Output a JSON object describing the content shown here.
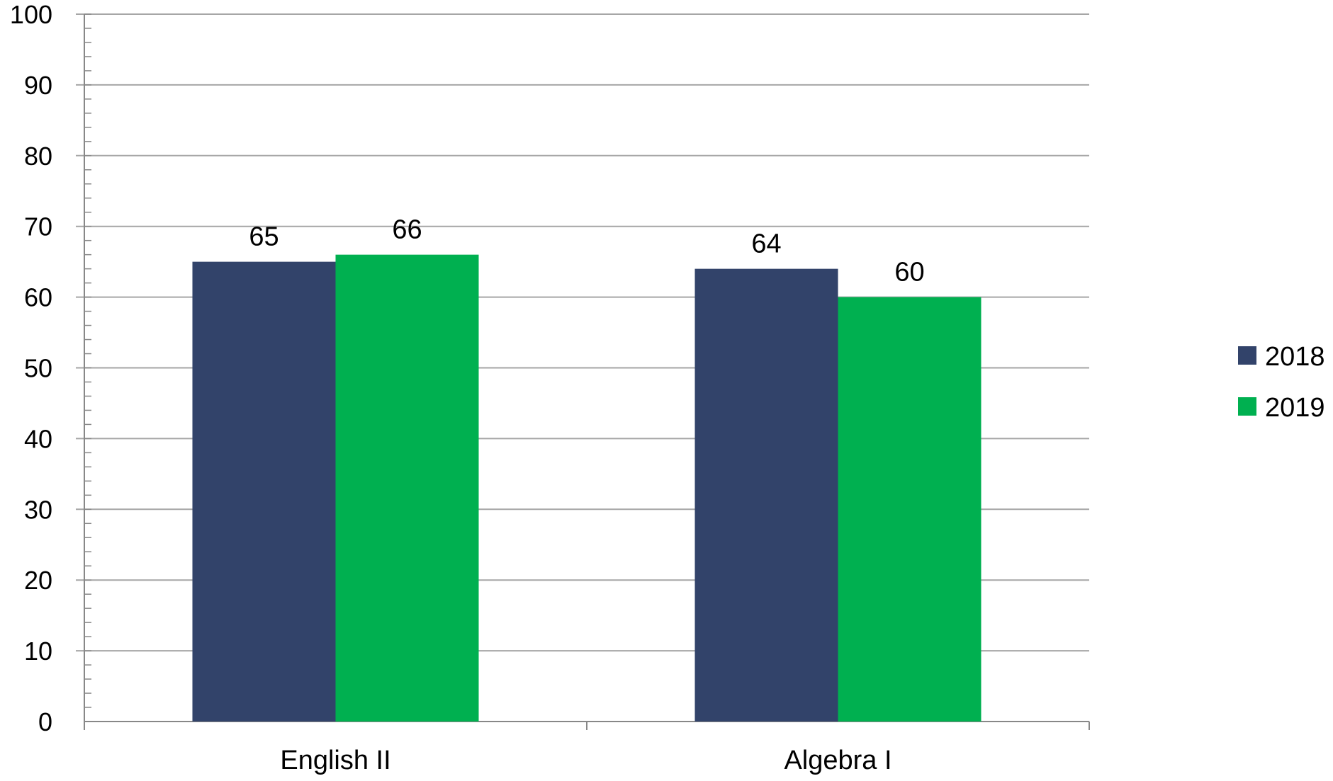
{
  "chart_data": {
    "type": "bar",
    "categories": [
      "English II",
      "Algebra I"
    ],
    "series": [
      {
        "name": "2018",
        "values": [
          65,
          64
        ],
        "color": "#32436a"
      },
      {
        "name": "2019",
        "values": [
          66,
          60
        ],
        "color": "#00b050"
      }
    ],
    "ylim": [
      0,
      100
    ],
    "ytick_step": 10,
    "yticks": [
      "0",
      "10",
      "20",
      "30",
      "40",
      "50",
      "60",
      "70",
      "80",
      "90",
      "100"
    ],
    "data_labels": true,
    "grid": true,
    "legend_position": "right",
    "colors": {
      "gridline": "#a6a6a6",
      "axis": "#888888"
    }
  }
}
